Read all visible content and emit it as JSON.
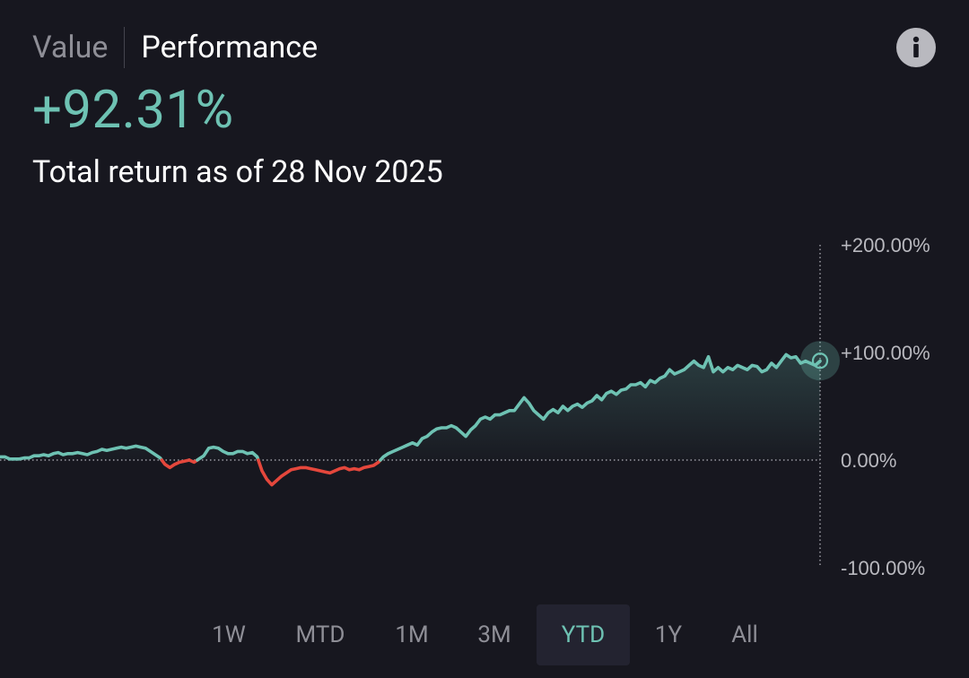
{
  "tabs": {
    "value_label": "Value",
    "performance_label": "Performance",
    "active": "performance"
  },
  "headline": {
    "value": "+92.31%",
    "subtitle": "Total return as of 28 Nov 2025"
  },
  "ranges": {
    "items": [
      "1W",
      "MTD",
      "1M",
      "3M",
      "YTD",
      "1Y",
      "All"
    ],
    "selected": "YTD"
  },
  "colors": {
    "positive": "#6ec2b3",
    "negative": "#e5473c",
    "background": "#17171f",
    "axis_text": "#b9b9bf"
  },
  "icons": {
    "info": "info-icon"
  },
  "chart_data": {
    "type": "area",
    "title": "",
    "xlabel": "",
    "ylabel": "",
    "ylim": [
      -100,
      200
    ],
    "y_ticks": [
      200,
      100,
      0,
      -100
    ],
    "y_tick_labels": [
      "+200.00%",
      "+100.00%",
      "0.00%",
      "-100.00%"
    ],
    "y_axis_position": "right",
    "baseline": 0,
    "grid": false,
    "series": [
      {
        "values": [
          3,
          3,
          1,
          1,
          1,
          2,
          2,
          4,
          4,
          5,
          4,
          6,
          7,
          5,
          6,
          6,
          7,
          6,
          5,
          7,
          8,
          10,
          9,
          10,
          11,
          12,
          11,
          12,
          13,
          12,
          11,
          8,
          5,
          2,
          -4,
          -7,
          -4,
          -2,
          -1,
          0,
          -2,
          1,
          4,
          11,
          12,
          11,
          8,
          6,
          6,
          8,
          8,
          6,
          7,
          3,
          -10,
          -18,
          -23,
          -19,
          -15,
          -12,
          -9,
          -8,
          -7,
          -7,
          -8,
          -9,
          -10,
          -11,
          -12,
          -10,
          -8,
          -7,
          -9,
          -8,
          -9,
          -7,
          -6,
          -5,
          -2,
          3,
          6,
          8,
          10,
          12,
          14,
          16,
          14,
          20,
          22,
          26,
          29,
          30,
          30,
          32,
          30,
          26,
          22,
          28,
          32,
          38,
          40,
          38,
          42,
          42,
          44,
          46,
          46,
          52,
          58,
          53,
          46,
          42,
          38,
          44,
          47,
          44,
          50,
          46,
          50,
          52,
          49,
          53,
          55,
          60,
          56,
          62,
          64,
          61,
          65,
          66,
          70,
          70,
          72,
          68,
          74,
          72,
          76,
          78,
          84,
          80,
          82,
          84,
          88,
          92,
          88,
          86,
          96,
          82,
          86,
          82,
          86,
          84,
          88,
          86,
          84,
          88,
          87,
          82,
          84,
          90,
          86,
          92,
          98,
          95,
          96,
          90,
          92,
          90,
          88,
          92
        ]
      }
    ],
    "end_value": 92.31
  }
}
